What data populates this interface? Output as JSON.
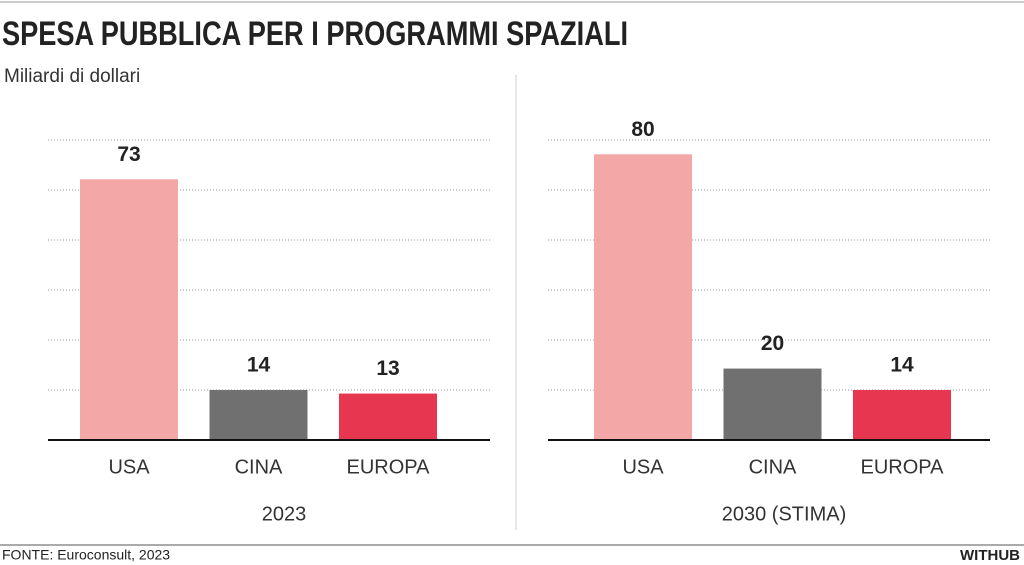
{
  "title": "SPESA PUBBLICA PER I PROGRAMMI SPAZIALI",
  "subtitle": "Miliardi di dollari",
  "source": "FONTE: Euroconsult, 2023",
  "brand": "WITHUB",
  "chart_data": [
    {
      "type": "bar",
      "xlabel": "2023",
      "categories": [
        "USA",
        "CINA",
        "EUROPA"
      ],
      "values": [
        73,
        14,
        13
      ],
      "colors": [
        "#f4a7a7",
        "#707070",
        "#e63650"
      ],
      "ylim": [
        0,
        84
      ],
      "yticks": [
        0,
        14,
        28,
        42,
        56,
        70,
        84
      ],
      "grid": true
    },
    {
      "type": "bar",
      "xlabel": "2030 (STIMA)",
      "categories": [
        "USA",
        "CINA",
        "EUROPA"
      ],
      "values": [
        80,
        20,
        14
      ],
      "colors": [
        "#f4a7a7",
        "#707070",
        "#e63650"
      ],
      "ylim": [
        0,
        84
      ],
      "yticks": [
        0,
        14,
        28,
        42,
        56,
        70,
        84
      ],
      "grid": true
    }
  ]
}
